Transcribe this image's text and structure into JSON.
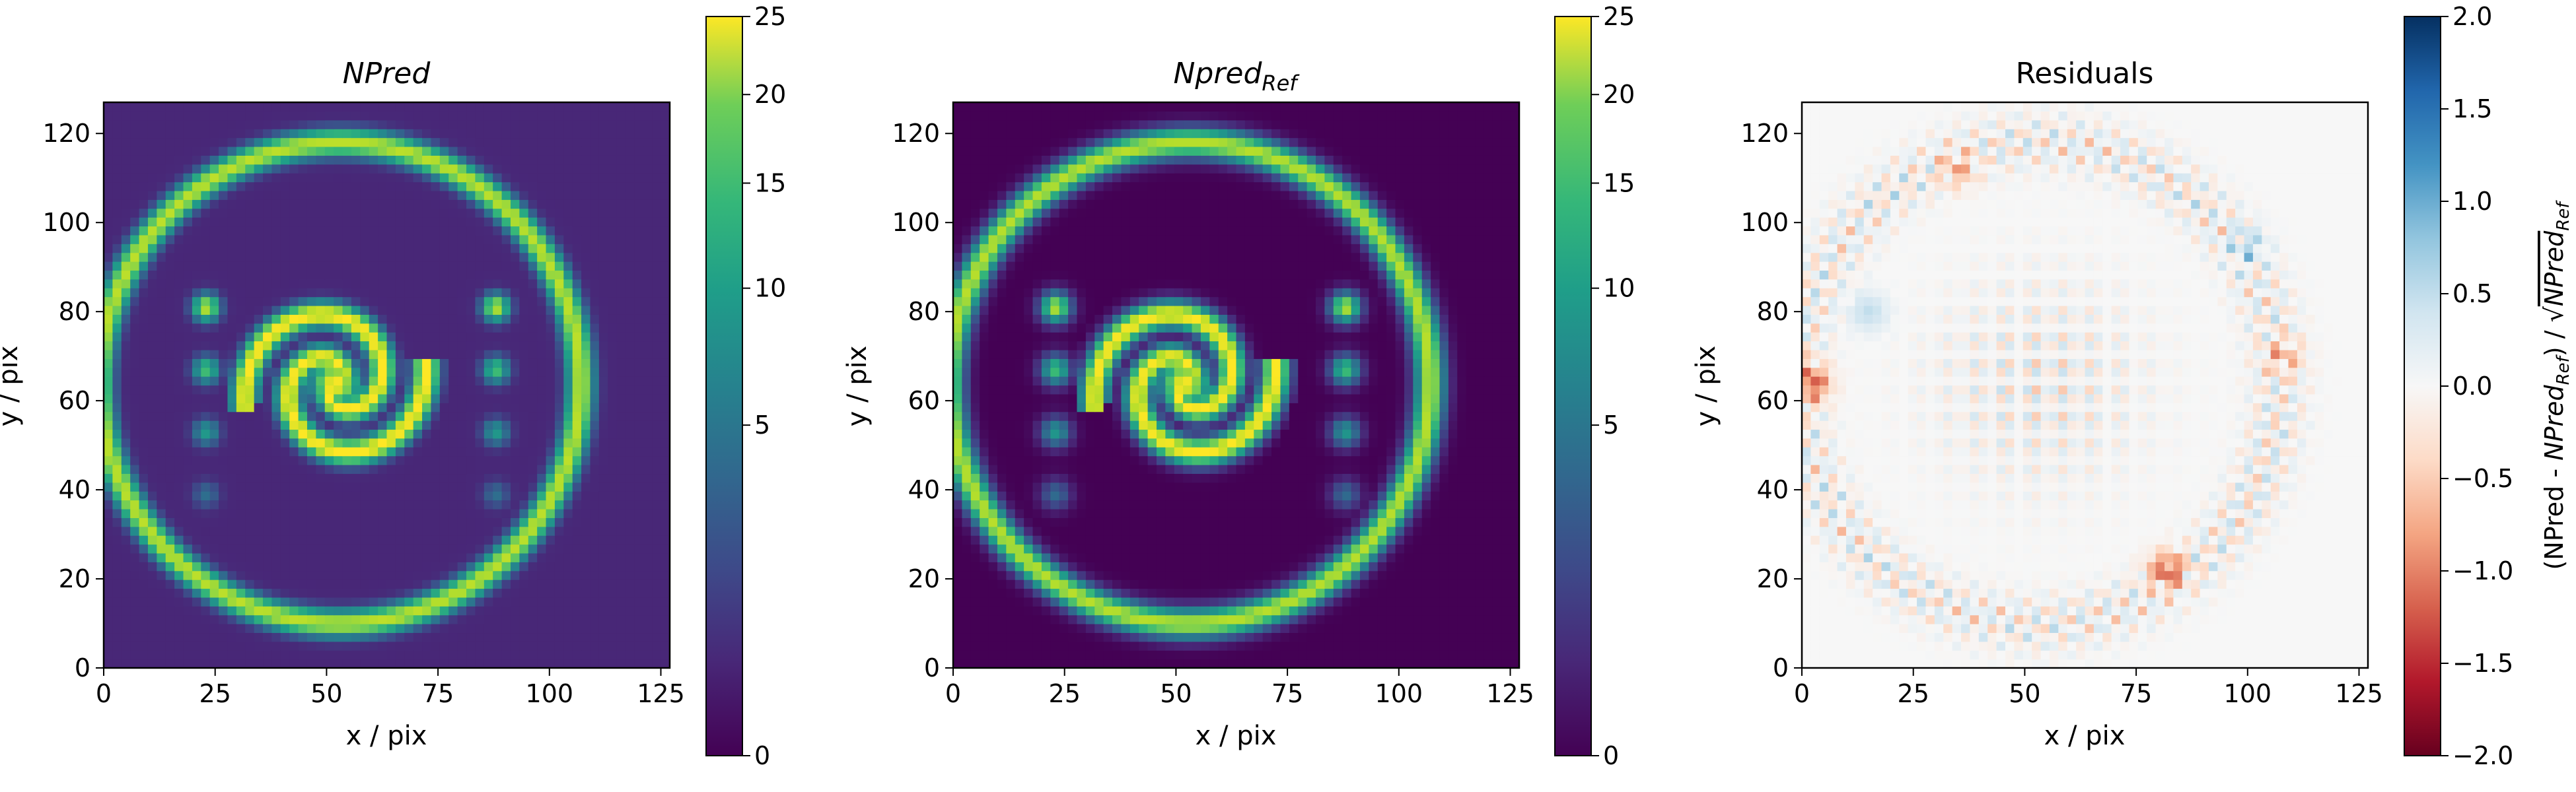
{
  "chart_data": [
    {
      "type": "heatmap",
      "title": "NPred",
      "xlabel": "x / pix",
      "ylabel": "y / pix",
      "xlim": [
        0,
        127
      ],
      "ylim": [
        0,
        127
      ],
      "x_ticks": [
        0,
        25,
        50,
        75,
        100,
        125
      ],
      "y_ticks": [
        0,
        20,
        40,
        60,
        80,
        100,
        120
      ],
      "colormap": "viridis",
      "color_scale": "sqrt",
      "colorbar_range": [
        0,
        25
      ],
      "colorbar_ticks": [
        0,
        5,
        10,
        15,
        20,
        25
      ],
      "content": {
        "ring": {
          "center": [
            53,
            64
          ],
          "radius": 54,
          "peak": 20
        },
        "spiral": {
          "center": [
            52,
            64
          ],
          "peak": 25
        },
        "blobs": [
          {
            "x": 23,
            "y": 81,
            "value": 20
          },
          {
            "x": 23,
            "y": 67,
            "value": 12
          },
          {
            "x": 23,
            "y": 53,
            "value": 7
          },
          {
            "x": 23,
            "y": 39,
            "value": 3
          },
          {
            "x": 88,
            "y": 81,
            "value": 20
          },
          {
            "x": 88,
            "y": 67,
            "value": 12
          },
          {
            "x": 88,
            "y": 53,
            "value": 7
          },
          {
            "x": 88,
            "y": 39,
            "value": 3
          }
        ],
        "background": 0.3
      }
    },
    {
      "type": "heatmap",
      "title": "Npred",
      "title_subscript": "Ref",
      "xlabel": "x / pix",
      "ylabel": "y / pix",
      "xlim": [
        0,
        127
      ],
      "ylim": [
        0,
        127
      ],
      "x_ticks": [
        0,
        25,
        50,
        75,
        100,
        125
      ],
      "y_ticks": [
        0,
        20,
        40,
        60,
        80,
        100,
        120
      ],
      "colormap": "viridis",
      "color_scale": "sqrt",
      "colorbar_range": [
        0,
        25
      ],
      "colorbar_ticks": [
        0,
        5,
        10,
        15,
        20,
        25
      ],
      "content": {
        "ring": {
          "center": [
            53,
            64
          ],
          "radius": 54,
          "peak": 20
        },
        "spiral": {
          "center": [
            52,
            64
          ],
          "peak": 25
        },
        "blobs": [
          {
            "x": 23,
            "y": 81,
            "value": 20
          },
          {
            "x": 23,
            "y": 67,
            "value": 12
          },
          {
            "x": 23,
            "y": 53,
            "value": 7
          },
          {
            "x": 23,
            "y": 39,
            "value": 3
          },
          {
            "x": 88,
            "y": 81,
            "value": 20
          },
          {
            "x": 88,
            "y": 67,
            "value": 12
          },
          {
            "x": 88,
            "y": 53,
            "value": 7
          },
          {
            "x": 88,
            "y": 39,
            "value": 3
          }
        ],
        "background": 0
      }
    },
    {
      "type": "heatmap",
      "title": "Residuals",
      "xlabel": "x / pix",
      "ylabel": "y / pix",
      "xlim": [
        0,
        127
      ],
      "ylim": [
        0,
        127
      ],
      "x_ticks": [
        0,
        25,
        50,
        75,
        100,
        125
      ],
      "y_ticks": [
        0,
        20,
        40,
        60,
        80,
        100,
        120
      ],
      "colormap": "RdBu",
      "colorbar_range": [
        -2.0,
        2.0
      ],
      "colorbar_ticks": [
        -2.0,
        -1.5,
        -1.0,
        -0.5,
        0.0,
        0.5,
        1.0,
        1.5,
        2.0
      ],
      "colorbar_tick_labels": [
        "−2.0",
        "−1.5",
        "−1.0",
        "−0.5",
        "0.0",
        "0.5",
        "1.0",
        "1.5",
        "2.0"
      ],
      "colorbar_label": "(NPred - NPred_Ref) / √NPred_Ref",
      "content": {
        "features": [
          {
            "x": 2,
            "y": 64,
            "value": -1.2
          },
          {
            "x": 82,
            "y": 22,
            "value": -1.1
          },
          {
            "x": 108,
            "y": 70,
            "value": -0.6
          },
          {
            "x": 35,
            "y": 112,
            "value": -0.6
          },
          {
            "x": 15,
            "y": 80,
            "value": 0.5
          },
          {
            "x": 100,
            "y": 95,
            "value": 0.5
          }
        ]
      }
    }
  ]
}
